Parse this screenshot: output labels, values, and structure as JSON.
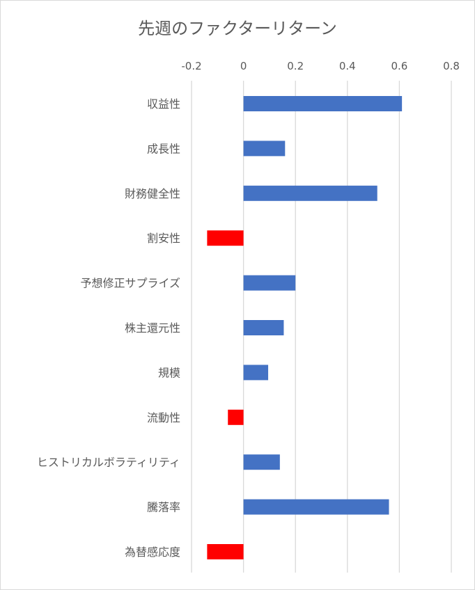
{
  "chart_data": {
    "type": "bar",
    "orientation": "horizontal",
    "title": "先週のファクターリターン",
    "xlabel": "",
    "ylabel": "",
    "xlim": [
      -0.2,
      0.8
    ],
    "ticks": [
      -0.2,
      0,
      0.2,
      0.4,
      0.6,
      0.8
    ],
    "tick_labels": [
      "-0.2",
      "0",
      "0.2",
      "0.4",
      "0.6",
      "0.8"
    ],
    "axis_position": "top",
    "grid": true,
    "legend": "none",
    "categories": [
      "収益性",
      "成長性",
      "財務健全性",
      "割安性",
      "予想修正サプライズ",
      "株主還元性",
      "規模",
      "流動性",
      "ヒストリカルボラティリティ",
      "騰落率",
      "為替感応度"
    ],
    "values": [
      0.61,
      0.16,
      0.515,
      -0.14,
      0.2,
      0.155,
      0.095,
      -0.06,
      0.14,
      0.56,
      -0.14
    ],
    "colors": {
      "positive": "#4472C4",
      "negative": "#FF0000",
      "grid": "#D9D9D9",
      "text": "#595959"
    }
  }
}
